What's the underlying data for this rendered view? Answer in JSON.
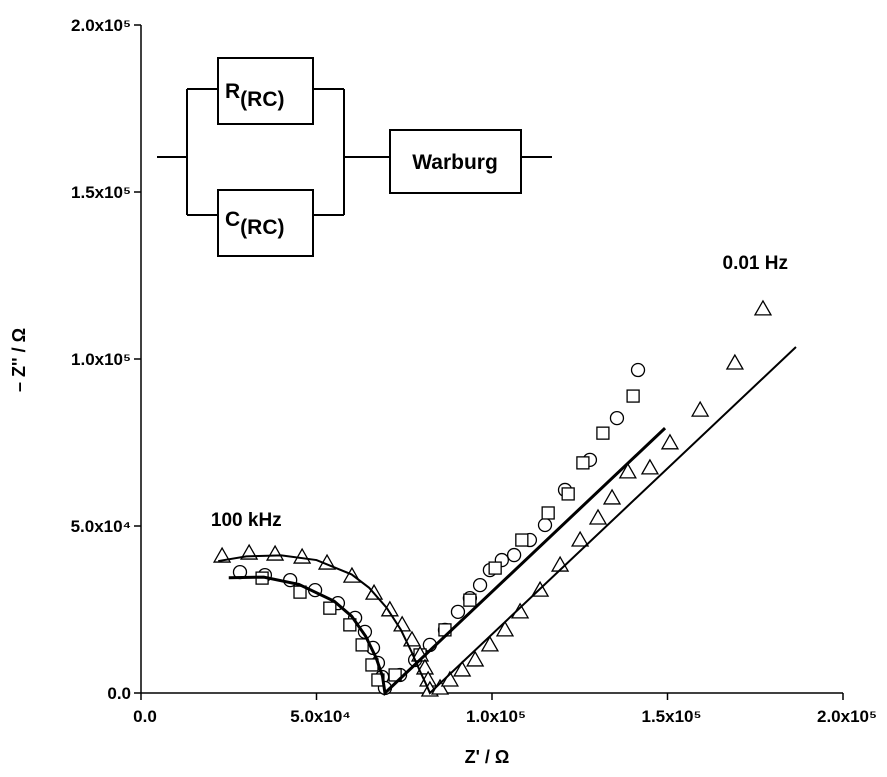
{
  "chart_data": {
    "type": "scatter",
    "xlabel": "Z' / Ω",
    "ylabel": "– Z'' / Ω",
    "xlim": [
      0,
      200000
    ],
    "ylim": [
      0,
      200000
    ],
    "xticks": [
      {
        "value": 0,
        "label": "0.0"
      },
      {
        "value": 50000,
        "label": "5.0x10⁴"
      },
      {
        "value": 100000,
        "label": "1.0x10⁵"
      },
      {
        "value": 150000,
        "label": "1.5x10⁵"
      },
      {
        "value": 200000,
        "label": "2.0x10⁵"
      }
    ],
    "yticks": [
      {
        "value": 0,
        "label": "0.0"
      },
      {
        "value": 50000,
        "label": "5.0x10⁴"
      },
      {
        "value": 100000,
        "label": "1.0x10⁵"
      },
      {
        "value": 150000,
        "label": "1.5x10⁵"
      },
      {
        "value": 200000,
        "label": "2.0x10⁵"
      }
    ],
    "annotations": [
      {
        "text": "100 kHz",
        "x": 30000,
        "y": 50000
      },
      {
        "text": "0.01 Hz",
        "x": 175000,
        "y": 127000
      }
    ],
    "series": [
      {
        "marker": "circle",
        "color": "#000000",
        "x": [
          28200,
          35300,
          42500,
          49600,
          56100,
          61000,
          63800,
          66100,
          67500,
          68700,
          69500,
          73800,
          78100,
          82300,
          86600,
          90300,
          93700,
          96600,
          99400,
          102800,
          106300,
          110800,
          115100,
          120800,
          127900,
          135600,
          141600
        ],
        "values": [
          36200,
          35300,
          33800,
          30800,
          26900,
          22500,
          18300,
          13500,
          9000,
          4800,
          1500,
          5400,
          9900,
          14400,
          18900,
          24300,
          28400,
          32300,
          36800,
          39800,
          41300,
          45800,
          50300,
          60800,
          69800,
          82300,
          96700
        ]
      },
      {
        "marker": "square",
        "color": "#000000",
        "x": [
          34500,
          45300,
          53800,
          59500,
          63000,
          65800,
          67500,
          72400,
          79500,
          86600,
          93700,
          100900,
          108500,
          116000,
          121700,
          125900,
          131600,
          140200
        ],
        "values": [
          34400,
          30200,
          25400,
          20400,
          14400,
          8400,
          3900,
          5400,
          11400,
          18900,
          27800,
          37400,
          45800,
          53900,
          59600,
          68900,
          77800,
          88900
        ]
      },
      {
        "marker": "triangle",
        "color": "#000000",
        "x": [
          23100,
          30800,
          38200,
          45900,
          53000,
          60100,
          66400,
          70900,
          74400,
          77200,
          79500,
          80900,
          81800,
          82300,
          85200,
          88000,
          91500,
          95200,
          99400,
          103700,
          108000,
          113700,
          119400,
          125100,
          130200,
          134200,
          138700,
          145000,
          150700,
          159300,
          169200,
          177200
        ],
        "values": [
          41000,
          41900,
          41600,
          40700,
          38900,
          35000,
          29900,
          24900,
          20400,
          15900,
          11400,
          7500,
          3900,
          900,
          1500,
          3900,
          6900,
          9900,
          14400,
          18900,
          24300,
          30800,
          38300,
          45800,
          52400,
          58400,
          66200,
          67400,
          74900,
          84700,
          98800,
          115000
        ]
      },
      {
        "marker": "line",
        "color": "#000000",
        "width": 3,
        "x": [
          25000,
          35000,
          45000,
          55000,
          60000,
          64000,
          67000,
          68800,
          69500,
          149300
        ],
        "values": [
          34500,
          34700,
          32500,
          27500,
          23000,
          17000,
          10500,
          5000,
          0,
          79300
        ]
      },
      {
        "marker": "line",
        "color": "#000000",
        "width": 2,
        "x": [
          22000,
          30000,
          40000,
          50000,
          60000,
          65000,
          70000,
          74000,
          77000,
          79500,
          81500,
          82300,
          186600
        ],
        "values": [
          39500,
          40900,
          41200,
          39800,
          35500,
          31500,
          25500,
          19000,
          12500,
          6500,
          2000,
          0,
          103600
        ]
      }
    ]
  },
  "circuit": {
    "r": {
      "main": "R",
      "sub": "(RC)"
    },
    "c": {
      "main": "C",
      "sub": "(RC)"
    },
    "w": "Warburg"
  }
}
